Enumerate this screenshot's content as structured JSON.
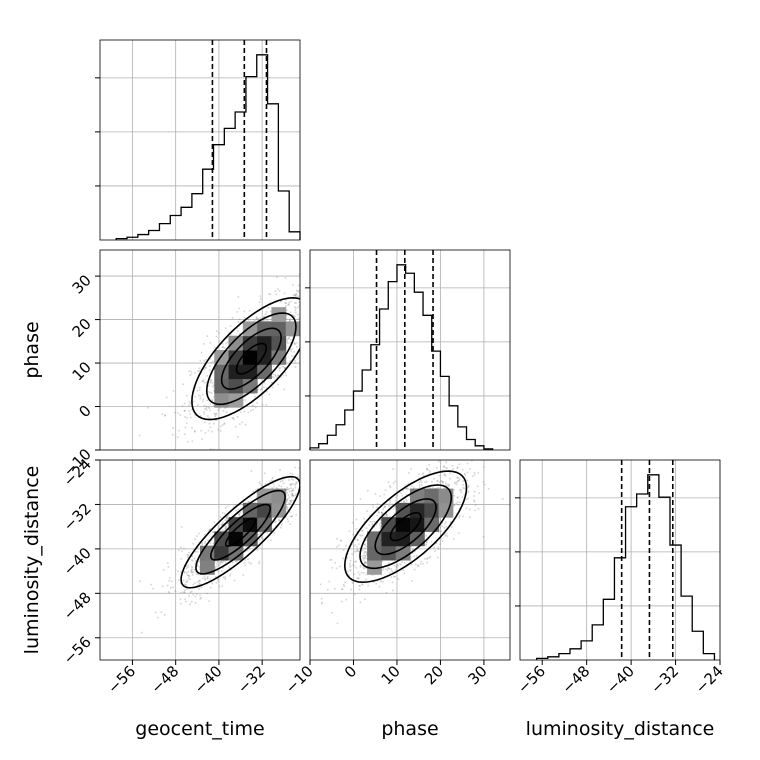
{
  "chart_data": {
    "type": "corner",
    "parameters": [
      "geocent_time",
      "phase",
      "luminosity_distance"
    ],
    "grid": true,
    "quantile_line_style": "dashed",
    "panels": {
      "geocent_time": {
        "range": [
          -62,
          -25
        ],
        "ticks": [
          -56,
          -48,
          -40,
          -32
        ],
        "quantiles": [
          -41.2,
          -35.3,
          -31.2
        ],
        "histogram": {
          "bin_edges": [
            -59,
            -57,
            -55,
            -53,
            -51,
            -49,
            -47,
            -45,
            -43,
            -41,
            -39,
            -37,
            -35,
            -33,
            -31,
            -29,
            -27,
            -25
          ],
          "counts": [
            0.5,
            1,
            2,
            3.5,
            6,
            9,
            12,
            17,
            26,
            35,
            41,
            47,
            60,
            68,
            50,
            18,
            3
          ]
        }
      },
      "phase": {
        "range": [
          -10,
          36
        ],
        "ticks": [
          -10,
          0,
          10,
          20,
          30
        ],
        "quantiles": [
          5.3,
          11.8,
          18.3
        ],
        "histogram": {
          "bin_edges": [
            -10,
            -8,
            -6,
            -4,
            -2,
            0,
            2,
            4,
            6,
            8,
            10,
            12,
            14,
            16,
            18,
            20,
            22,
            24,
            26,
            28,
            30,
            32
          ],
          "counts": [
            1,
            3,
            7,
            12,
            19,
            28,
            38,
            50,
            67,
            80,
            88,
            84,
            75,
            64,
            47,
            35,
            21,
            11,
            5,
            2,
            0.5
          ]
        }
      },
      "luminosity_distance": {
        "range": [
          -60,
          -24
        ],
        "ticks": [
          -56,
          -48,
          -40,
          -32,
          -24
        ],
        "quantiles": [
          -41.7,
          -36.7,
          -32.5
        ],
        "histogram": {
          "bin_edges": [
            -57,
            -55,
            -53,
            -51,
            -49,
            -47,
            -45,
            -43,
            -41,
            -39,
            -37,
            -35,
            -33,
            -31,
            -29,
            -27,
            -25
          ],
          "counts": [
            0.5,
            1,
            2,
            3.5,
            6,
            11,
            19,
            32,
            48,
            52,
            58,
            51,
            36,
            20,
            9,
            2
          ]
        }
      }
    },
    "pairs": [
      {
        "x": "geocent_time",
        "y": "phase",
        "center": [
          -34,
          11
        ],
        "sd": [
          5.5,
          7
        ],
        "correlation": 0.7
      },
      {
        "x": "geocent_time",
        "y": "luminosity_distance",
        "center": [
          -36,
          -37
        ],
        "sd": [
          5.5,
          5
        ],
        "correlation": 0.85
      },
      {
        "x": "phase",
        "y": "luminosity_distance",
        "center": [
          12,
          -36
        ],
        "sd": [
          7,
          5
        ],
        "correlation": 0.7
      }
    ],
    "contour_levels_sigma": [
      0.5,
      1.0,
      1.5,
      2.0
    ]
  }
}
